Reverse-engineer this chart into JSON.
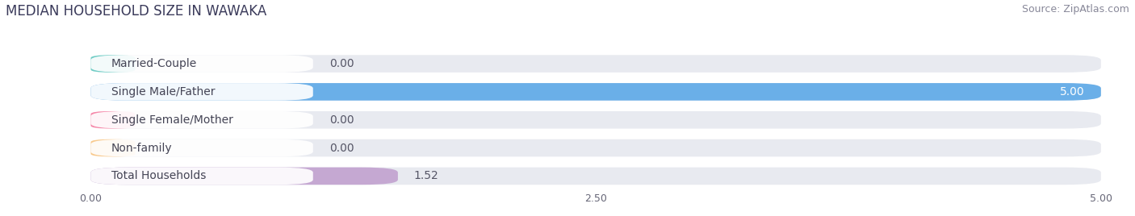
{
  "title": "MEDIAN HOUSEHOLD SIZE IN WAWAKA",
  "source": "Source: ZipAtlas.com",
  "categories": [
    "Married-Couple",
    "Single Male/Father",
    "Single Female/Mother",
    "Non-family",
    "Total Households"
  ],
  "values": [
    0.0,
    5.0,
    0.0,
    0.0,
    1.52
  ],
  "bar_colors": [
    "#72cdc6",
    "#6aafe8",
    "#f589aa",
    "#f8ca8e",
    "#c5a8d2"
  ],
  "xlim": [
    0,
    5.0
  ],
  "xticks": [
    0.0,
    2.5,
    5.0
  ],
  "xtick_labels": [
    "0.00",
    "2.50",
    "5.00"
  ],
  "background_color": "#ffffff",
  "bar_bg_color": "#e8eaf0",
  "title_fontsize": 12,
  "source_fontsize": 9,
  "label_fontsize": 10,
  "value_fontsize": 10
}
